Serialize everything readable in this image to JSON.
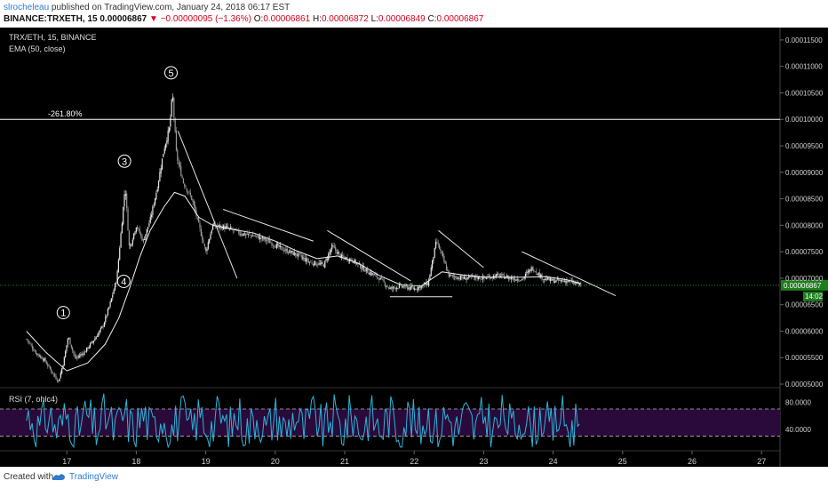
{
  "header": {
    "author": "slrocheleau",
    "published_text": " published on TradingView.com, January 24, 2018 06:17 EST",
    "symbol": "BINANCE:TRXETH, 15",
    "price": "0.00006867",
    "change": "▼ −0.00000095 (−1.36%)",
    "o_label": "O:",
    "o_value": "0.00006861",
    "h_label": "H:",
    "h_value": "0.00006872",
    "l_label": "L:",
    "l_value": "0.00006849",
    "c_label": "C:",
    "c_value": "0.00006867"
  },
  "legend": {
    "series": "TRX/ETH, 15, BINANCE",
    "ema": "EMA (50, close)",
    "rsi": "RSI (7, ohlc4)"
  },
  "footer": {
    "created": "Created with",
    "brand": "TradingView"
  },
  "colors": {
    "background": "#000000",
    "up": "#e8e8e8",
    "down": "#9a9a9a",
    "ema": "#f0f0f0",
    "rsi_line": "#2bb5d8",
    "rsi_band": "#2a0a3a",
    "current_price_line": "#2e8b2e",
    "fib_line": "#ffffff"
  },
  "chart_data": {
    "type": "candlestick",
    "ylim": [
      4.95e-05,
      0.000117
    ],
    "y_ticks": [
      "0.00011500",
      "0.00011000",
      "0.00010500",
      "0.00010000",
      "0.00009500",
      "0.00009000",
      "0.00008500",
      "0.00008000",
      "0.00007500",
      "0.00007000",
      "0.00006500",
      "0.00006000",
      "0.00005500",
      "0.00005000"
    ],
    "x_ticks": [
      "17",
      "18",
      "19",
      "20",
      "21",
      "22",
      "23",
      "24",
      "25",
      "26",
      "27"
    ],
    "last_price": "0.00006867",
    "last_price_value": 6.867e-05,
    "time_badge": "14:02",
    "fib_level": {
      "label": "-261.80%",
      "value": 0.0001
    },
    "wave_labels": [
      {
        "label": "1",
        "x": 16.95,
        "y": 6.35e-05
      },
      {
        "label": "3",
        "x": 17.83,
        "y": 9.21e-05
      },
      {
        "label": "4",
        "x": 17.82,
        "y": 6.94e-05
      },
      {
        "label": "5",
        "x": 18.5,
        "y": 0.0001088
      }
    ],
    "series_path": [
      [
        16.42,
        5.85e-05
      ],
      [
        16.55,
        5.6e-05
      ],
      [
        16.68,
        5.45e-05
      ],
      [
        16.8,
        5.2e-05
      ],
      [
        16.88,
        5.05e-05
      ],
      [
        16.95,
        5.4e-05
      ],
      [
        17.02,
        5.9e-05
      ],
      [
        17.12,
        5.48e-05
      ],
      [
        17.25,
        5.6e-05
      ],
      [
        17.4,
        5.85e-05
      ],
      [
        17.52,
        6.1e-05
      ],
      [
        17.62,
        6.5e-05
      ],
      [
        17.72,
        7e-05
      ],
      [
        17.8,
        8.15e-05
      ],
      [
        17.84,
        8.75e-05
      ],
      [
        17.9,
        7.55e-05
      ],
      [
        18.0,
        8e-05
      ],
      [
        18.1,
        7.7e-05
      ],
      [
        18.2,
        8.1e-05
      ],
      [
        18.3,
        8.7e-05
      ],
      [
        18.4,
        9.45e-05
      ],
      [
        18.48,
        9.85e-05
      ],
      [
        18.52,
        0.000105
      ],
      [
        18.58,
        9.3e-05
      ],
      [
        18.68,
        8.8e-05
      ],
      [
        18.8,
        8.5e-05
      ],
      [
        18.92,
        7.9e-05
      ],
      [
        19.0,
        7.5e-05
      ],
      [
        19.1,
        8e-05
      ],
      [
        19.3,
        7.95e-05
      ],
      [
        19.5,
        7.85e-05
      ],
      [
        19.7,
        7.8e-05
      ],
      [
        19.9,
        7.7e-05
      ],
      [
        20.1,
        7.55e-05
      ],
      [
        20.3,
        7.45e-05
      ],
      [
        20.5,
        7.3e-05
      ],
      [
        20.7,
        7.25e-05
      ],
      [
        20.82,
        7.6e-05
      ],
      [
        20.95,
        7.4e-05
      ],
      [
        21.1,
        7.35e-05
      ],
      [
        21.3,
        7.15e-05
      ],
      [
        21.5,
        7e-05
      ],
      [
        21.65,
        6.8e-05
      ],
      [
        21.8,
        6.85e-05
      ],
      [
        22.0,
        6.8e-05
      ],
      [
        22.2,
        6.9e-05
      ],
      [
        22.32,
        7.7e-05
      ],
      [
        22.38,
        7.5e-05
      ],
      [
        22.5,
        7.05e-05
      ],
      [
        22.7,
        7e-05
      ],
      [
        22.9,
        7.02e-05
      ],
      [
        23.0,
        7e-05
      ],
      [
        23.2,
        7.05e-05
      ],
      [
        23.4,
        7e-05
      ],
      [
        23.55,
        6.98e-05
      ],
      [
        23.7,
        7.2e-05
      ],
      [
        23.85,
        7e-05
      ],
      [
        24.0,
        6.95e-05
      ],
      [
        24.2,
        6.95e-05
      ],
      [
        24.4,
        6.87e-05
      ]
    ],
    "ema_path": [
      [
        16.42,
        6e-05
      ],
      [
        16.7,
        5.6e-05
      ],
      [
        17.0,
        5.25e-05
      ],
      [
        17.3,
        5.4e-05
      ],
      [
        17.55,
        5.75e-05
      ],
      [
        17.75,
        6.25e-05
      ],
      [
        17.9,
        6.8e-05
      ],
      [
        18.05,
        7.4e-05
      ],
      [
        18.2,
        7.9e-05
      ],
      [
        18.4,
        8.35e-05
      ],
      [
        18.55,
        8.62e-05
      ],
      [
        18.7,
        8.55e-05
      ],
      [
        18.9,
        8.15e-05
      ],
      [
        19.1,
        8e-05
      ],
      [
        19.4,
        7.92e-05
      ],
      [
        19.7,
        7.85e-05
      ],
      [
        20.0,
        7.7e-05
      ],
      [
        20.3,
        7.52e-05
      ],
      [
        20.6,
        7.37e-05
      ],
      [
        20.9,
        7.42e-05
      ],
      [
        21.2,
        7.28e-05
      ],
      [
        21.5,
        7.05e-05
      ],
      [
        21.8,
        6.88e-05
      ],
      [
        22.1,
        6.85e-05
      ],
      [
        22.4,
        7.12e-05
      ],
      [
        22.7,
        7.06e-05
      ],
      [
        23.0,
        7.02e-05
      ],
      [
        23.3,
        7.02e-05
      ],
      [
        23.6,
        7.02e-05
      ],
      [
        23.9,
        7.03e-05
      ],
      [
        24.2,
        6.97e-05
      ],
      [
        24.4,
        6.9e-05
      ]
    ],
    "trendlines": [
      {
        "from": [
          18.6,
          9.78e-05
        ],
        "to": [
          19.45,
          7e-05
        ]
      },
      {
        "from": [
          19.25,
          8.3e-05
        ],
        "to": [
          20.55,
          7.7e-05
        ]
      },
      {
        "from": [
          20.75,
          7.9e-05
        ],
        "to": [
          21.95,
          6.95e-05
        ]
      },
      {
        "from": [
          22.35,
          7.9e-05
        ],
        "to": [
          23.0,
          7.2e-05
        ]
      },
      {
        "from": [
          23.55,
          7.5e-05
        ],
        "to": [
          24.9,
          6.67e-05
        ]
      },
      {
        "from": [
          21.65,
          6.65e-05
        ],
        "to": [
          22.55,
          6.65e-05
        ]
      }
    ],
    "rsi": {
      "label": "RSI (7, ohlc4)",
      "levels": [
        70,
        30
      ],
      "ticks": [
        "80.0000",
        "40.0000"
      ],
      "ylim": [
        10,
        100
      ],
      "last_value": 55
    }
  }
}
